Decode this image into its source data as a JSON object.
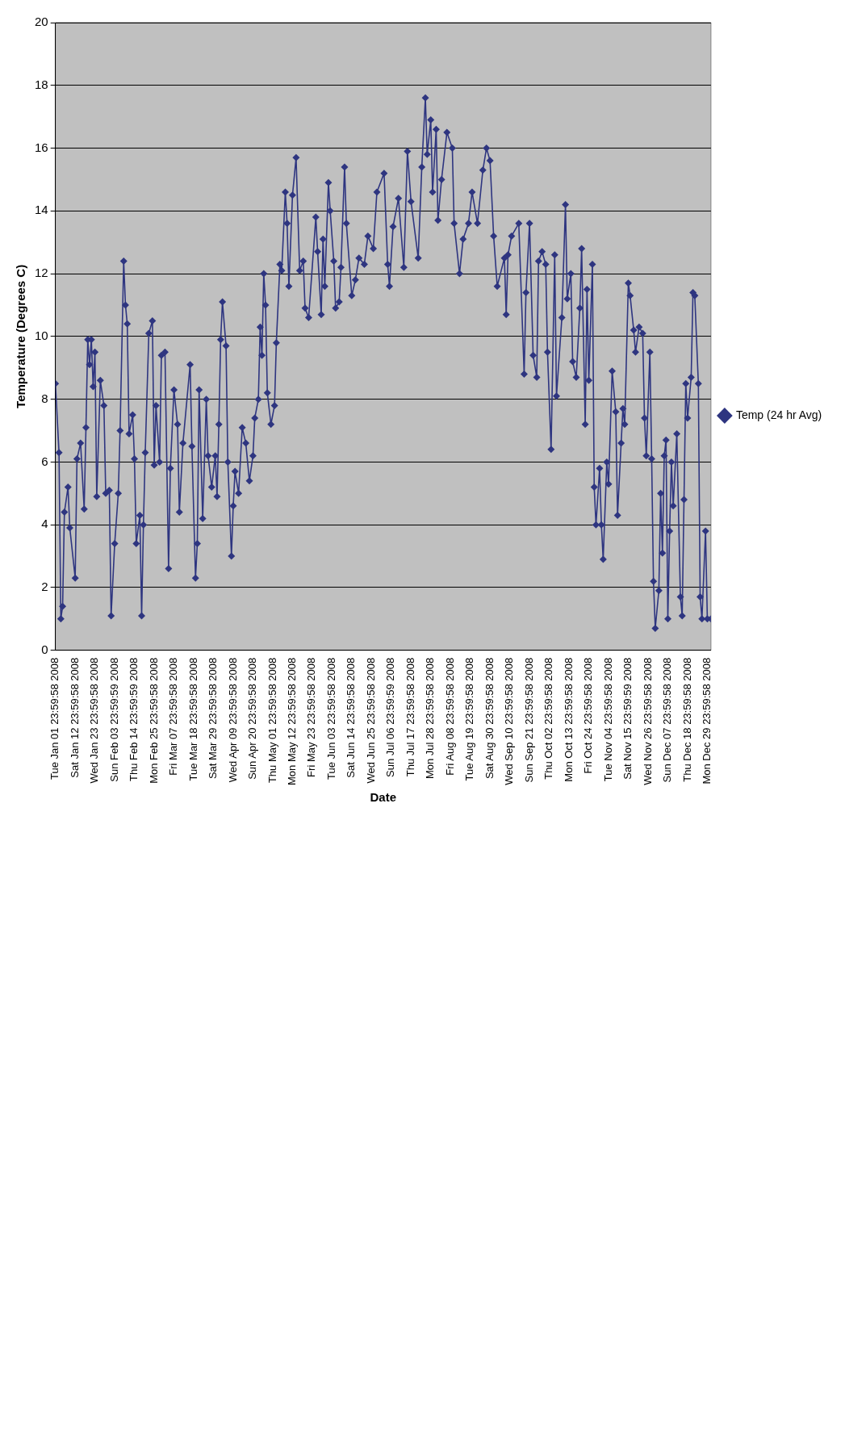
{
  "chart_data": {
    "type": "line",
    "xlabel": "Date",
    "ylabel": "Temperature (Degrees C)",
    "legend": "right",
    "grid": "y",
    "marker": "diamond",
    "line_style": "solid",
    "ylim": [
      0,
      20
    ],
    "yticks": [
      0,
      2,
      4,
      6,
      8,
      10,
      12,
      14,
      16,
      18,
      20
    ],
    "xlim": [
      "2008-01-01",
      "2008-12-31"
    ],
    "xticks": [
      {
        "value": "2008-01-01",
        "label": "Tue Jan 01 23:59:58 2008"
      },
      {
        "value": "2008-01-12",
        "label": "Sat Jan 12 23:59:58 2008"
      },
      {
        "value": "2008-01-23",
        "label": "Wed Jan 23 23:59:58 2008"
      },
      {
        "value": "2008-02-03",
        "label": "Sun Feb 03 23:59:59 2008"
      },
      {
        "value": "2008-02-14",
        "label": "Thu Feb 14 23:59:59 2008"
      },
      {
        "value": "2008-02-25",
        "label": "Mon Feb 25 23:59:58 2008"
      },
      {
        "value": "2008-03-07",
        "label": "Fri Mar 07 23:59:58 2008"
      },
      {
        "value": "2008-03-18",
        "label": "Tue Mar 18 23:59:58 2008"
      },
      {
        "value": "2008-03-29",
        "label": "Sat Mar 29 23:59:58 2008"
      },
      {
        "value": "2008-04-09",
        "label": "Wed Apr 09 23:59:58 2008"
      },
      {
        "value": "2008-04-20",
        "label": "Sun Apr 20 23:59:58 2008"
      },
      {
        "value": "2008-05-01",
        "label": "Thu May 01 23:59:58 2008"
      },
      {
        "value": "2008-05-12",
        "label": "Mon May 12 23:59:58 2008"
      },
      {
        "value": "2008-05-23",
        "label": "Fri May 23 23:59:58 2008"
      },
      {
        "value": "2008-06-03",
        "label": "Tue Jun 03 23:59:58 2008"
      },
      {
        "value": "2008-06-14",
        "label": "Sat Jun 14 23:59:58 2008"
      },
      {
        "value": "2008-06-25",
        "label": "Wed Jun 25 23:59:58 2008"
      },
      {
        "value": "2008-07-06",
        "label": "Sun Jul 06 23:59:59 2008"
      },
      {
        "value": "2008-07-17",
        "label": "Thu Jul 17 23:59:58 2008"
      },
      {
        "value": "2008-07-28",
        "label": "Mon Jul 28 23:59:58 2008"
      },
      {
        "value": "2008-08-08",
        "label": "Fri Aug 08 23:59:58 2008"
      },
      {
        "value": "2008-08-19",
        "label": "Tue Aug 19 23:59:58 2008"
      },
      {
        "value": "2008-08-30",
        "label": "Sat Aug 30 23:59:58 2008"
      },
      {
        "value": "2008-09-10",
        "label": "Wed Sep 10 23:59:58 2008"
      },
      {
        "value": "2008-09-21",
        "label": "Sun Sep 21 23:59:58 2008"
      },
      {
        "value": "2008-10-02",
        "label": "Thu Oct 02 23:59:58 2008"
      },
      {
        "value": "2008-10-13",
        "label": "Mon Oct 13 23:59:58 2008"
      },
      {
        "value": "2008-10-24",
        "label": "Fri Oct 24 23:59:58 2008"
      },
      {
        "value": "2008-11-04",
        "label": "Tue Nov 04 23:59:58 2008"
      },
      {
        "value": "2008-11-15",
        "label": "Sat Nov 15 23:59:59 2008"
      },
      {
        "value": "2008-11-26",
        "label": "Wed Nov 26 23:59:58 2008"
      },
      {
        "value": "2008-12-07",
        "label": "Sun Dec 07 23:59:58 2008"
      },
      {
        "value": "2008-12-18",
        "label": "Thu Dec 18 23:59:58 2008"
      },
      {
        "value": "2008-12-29",
        "label": "Mon Dec 29 23:59:58 2008"
      }
    ],
    "series": [
      {
        "name": "Temp (24 hr Avg)",
        "color": "#2e3580",
        "x": [
          "2008-01-01",
          "2008-01-03",
          "2008-01-04",
          "2008-01-05",
          "2008-01-06",
          "2008-01-08",
          "2008-01-09",
          "2008-01-12",
          "2008-01-13",
          "2008-01-15",
          "2008-01-17",
          "2008-01-18",
          "2008-01-19",
          "2008-01-20",
          "2008-01-21",
          "2008-01-22",
          "2008-01-23",
          "2008-01-24",
          "2008-01-26",
          "2008-01-28",
          "2008-01-29",
          "2008-01-31",
          "2008-02-01",
          "2008-02-03",
          "2008-02-05",
          "2008-02-06",
          "2008-02-08",
          "2008-02-09",
          "2008-02-10",
          "2008-02-11",
          "2008-02-13",
          "2008-02-14",
          "2008-02-15",
          "2008-02-17",
          "2008-02-18",
          "2008-02-19",
          "2008-02-20",
          "2008-02-22",
          "2008-02-24",
          "2008-02-25",
          "2008-02-26",
          "2008-02-28",
          "2008-02-29",
          "2008-03-02",
          "2008-03-04",
          "2008-03-05",
          "2008-03-07",
          "2008-03-09",
          "2008-03-10",
          "2008-03-12",
          "2008-03-16",
          "2008-03-17",
          "2008-03-19",
          "2008-03-20",
          "2008-03-21",
          "2008-03-23",
          "2008-03-25",
          "2008-03-26",
          "2008-03-28",
          "2008-03-30",
          "2008-03-31",
          "2008-04-01",
          "2008-04-02",
          "2008-04-03",
          "2008-04-05",
          "2008-04-06",
          "2008-04-08",
          "2008-04-09",
          "2008-04-10",
          "2008-04-12",
          "2008-04-14",
          "2008-04-16",
          "2008-04-18",
          "2008-04-20",
          "2008-04-21",
          "2008-04-23",
          "2008-04-24",
          "2008-04-25",
          "2008-04-26",
          "2008-04-27",
          "2008-04-28",
          "2008-04-30",
          "2008-05-02",
          "2008-05-03",
          "2008-05-05",
          "2008-05-06",
          "2008-05-08",
          "2008-05-09",
          "2008-05-10",
          "2008-05-12",
          "2008-05-14",
          "2008-05-16",
          "2008-05-18",
          "2008-05-19",
          "2008-05-21",
          "2008-05-25",
          "2008-05-26",
          "2008-05-28",
          "2008-05-29",
          "2008-05-30",
          "2008-06-01",
          "2008-06-02",
          "2008-06-04",
          "2008-06-05",
          "2008-06-07",
          "2008-06-08",
          "2008-06-10",
          "2008-06-11",
          "2008-06-14",
          "2008-06-16",
          "2008-06-18",
          "2008-06-21",
          "2008-06-23",
          "2008-06-26",
          "2008-06-28",
          "2008-07-02",
          "2008-07-04",
          "2008-07-05",
          "2008-07-07",
          "2008-07-10",
          "2008-07-13",
          "2008-07-15",
          "2008-07-17",
          "2008-07-21",
          "2008-07-23",
          "2008-07-25",
          "2008-07-26",
          "2008-07-28",
          "2008-07-29",
          "2008-07-31",
          "2008-08-01",
          "2008-08-03",
          "2008-08-06",
          "2008-08-09",
          "2008-08-10",
          "2008-08-13",
          "2008-08-15",
          "2008-08-18",
          "2008-08-20",
          "2008-08-23",
          "2008-08-26",
          "2008-08-28",
          "2008-08-30",
          "2008-09-01",
          "2008-09-03",
          "2008-09-07",
          "2008-09-08",
          "2008-09-09",
          "2008-09-11",
          "2008-09-15",
          "2008-09-18",
          "2008-09-19",
          "2008-09-21",
          "2008-09-23",
          "2008-09-25",
          "2008-09-26",
          "2008-09-28",
          "2008-09-30",
          "2008-10-01",
          "2008-10-03",
          "2008-10-05",
          "2008-10-06",
          "2008-10-09",
          "2008-10-11",
          "2008-10-12",
          "2008-10-14",
          "2008-10-15",
          "2008-10-17",
          "2008-10-19",
          "2008-10-20",
          "2008-10-22",
          "2008-10-23",
          "2008-10-24",
          "2008-10-26",
          "2008-10-27",
          "2008-10-28",
          "2008-10-30",
          "2008-10-31",
          "2008-11-01",
          "2008-11-03",
          "2008-11-04",
          "2008-11-06",
          "2008-11-08",
          "2008-11-09",
          "2008-11-11",
          "2008-11-12",
          "2008-11-13",
          "2008-11-15",
          "2008-11-16",
          "2008-11-18",
          "2008-11-19",
          "2008-11-21",
          "2008-11-23",
          "2008-11-24",
          "2008-11-25",
          "2008-11-27",
          "2008-11-28",
          "2008-11-29",
          "2008-11-30",
          "2008-12-02",
          "2008-12-03",
          "2008-12-04",
          "2008-12-05",
          "2008-12-06",
          "2008-12-07",
          "2008-12-08",
          "2008-12-09",
          "2008-12-10",
          "2008-12-12",
          "2008-12-14",
          "2008-12-15",
          "2008-12-16",
          "2008-12-17",
          "2008-12-18",
          "2008-12-20",
          "2008-12-21",
          "2008-12-22",
          "2008-12-24",
          "2008-12-25",
          "2008-12-26",
          "2008-12-28",
          "2008-12-29",
          "2008-12-31"
        ],
        "values": [
          8.5,
          6.3,
          1.0,
          1.4,
          4.4,
          5.2,
          3.9,
          2.3,
          6.1,
          6.6,
          4.5,
          7.1,
          9.9,
          9.1,
          9.9,
          8.4,
          9.5,
          4.9,
          8.6,
          7.8,
          5.0,
          5.1,
          1.1,
          3.4,
          5.0,
          7.0,
          12.4,
          11.0,
          10.4,
          6.9,
          7.5,
          6.1,
          3.4,
          4.3,
          1.1,
          4.0,
          6.3,
          10.1,
          10.5,
          5.9,
          7.8,
          6.0,
          9.4,
          9.5,
          2.6,
          5.8,
          8.3,
          7.2,
          4.4,
          6.6,
          9.1,
          6.5,
          2.3,
          3.4,
          8.3,
          4.2,
          8.0,
          6.2,
          5.2,
          6.2,
          4.9,
          7.2,
          9.9,
          11.1,
          9.7,
          6.0,
          3.0,
          4.6,
          5.7,
          5.0,
          7.1,
          6.6,
          5.4,
          6.2,
          7.4,
          8.0,
          10.3,
          9.4,
          12.0,
          11.0,
          8.2,
          7.2,
          7.8,
          9.8,
          12.3,
          12.1,
          14.6,
          13.6,
          11.6,
          14.5,
          15.7,
          12.1,
          12.4,
          10.9,
          10.6,
          13.8,
          12.7,
          10.7,
          13.1,
          11.6,
          14.9,
          14.0,
          12.4,
          10.9,
          11.1,
          12.2,
          15.4,
          13.6,
          11.3,
          11.8,
          12.5,
          12.3,
          13.2,
          12.8,
          14.6,
          15.2,
          12.3,
          11.6,
          13.5,
          14.4,
          12.2,
          15.9,
          14.3,
          12.5,
          15.4,
          17.6,
          15.8,
          16.9,
          14.6,
          16.6,
          13.7,
          15.0,
          16.5,
          16.0,
          13.6,
          12.0,
          13.1,
          13.6,
          14.6,
          13.6,
          15.3,
          16.0,
          15.6,
          13.2,
          11.6,
          12.5,
          10.7,
          12.6,
          13.2,
          13.6,
          8.8,
          11.4,
          13.6,
          9.4,
          8.7,
          12.4,
          12.7,
          12.3,
          9.5,
          6.4,
          12.6,
          8.1,
          10.6,
          14.2,
          11.2,
          12.0,
          9.2,
          8.7,
          10.9,
          12.8,
          7.2,
          11.5,
          8.6,
          12.3,
          5.2,
          4.0,
          5.8,
          4.0,
          2.9,
          6.0,
          5.3,
          8.9,
          7.6,
          4.3,
          6.6,
          7.7,
          7.2,
          11.7,
          11.3,
          10.2,
          9.5,
          10.3,
          10.1,
          7.4,
          6.2,
          9.5,
          6.1,
          2.2,
          0.7,
          1.9,
          5.0,
          3.1,
          6.2,
          6.7,
          1.0,
          3.8,
          6.0,
          4.6,
          6.9,
          1.7,
          1.1,
          4.8,
          8.5,
          7.4,
          8.7,
          11.4,
          11.3,
          8.5,
          1.7,
          1.0,
          3.8,
          1.0,
          1.0
        ]
      }
    ]
  }
}
